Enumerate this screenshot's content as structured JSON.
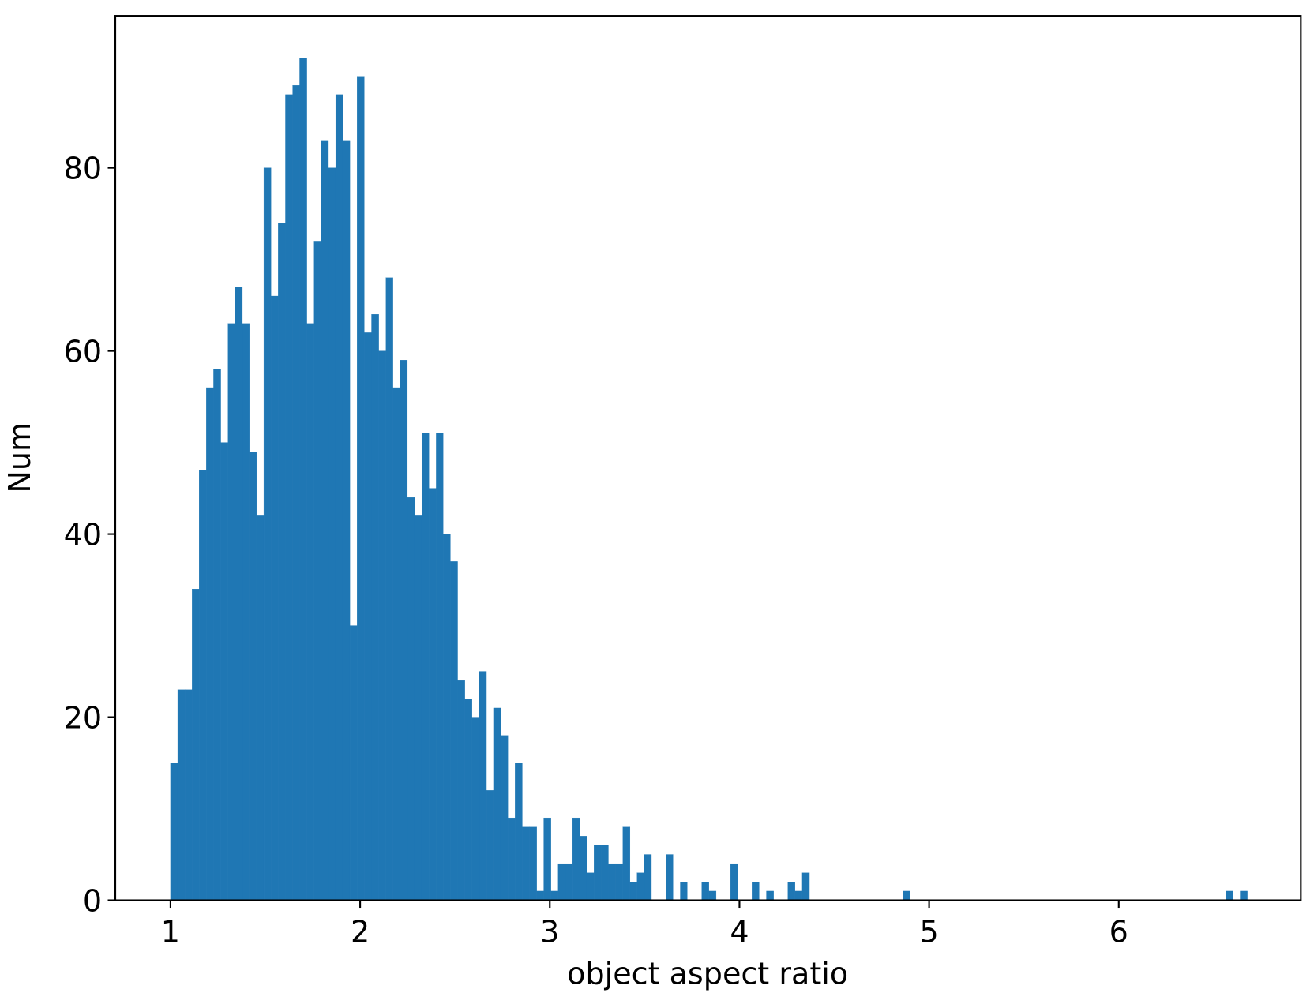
{
  "chart_data": {
    "type": "histogram",
    "xlabel": "object aspect ratio",
    "ylabel": "Num",
    "color": "#1f77b4",
    "bins": [
      1.0,
      1.038,
      1.076,
      1.114,
      1.151,
      1.189,
      1.227,
      1.265,
      1.303,
      1.341,
      1.379,
      1.416,
      1.454,
      1.492,
      1.53,
      1.568,
      1.606,
      1.644,
      1.681,
      1.719,
      1.757,
      1.795,
      1.833,
      1.871,
      1.908,
      1.946,
      1.984,
      2.022,
      2.06,
      2.098,
      2.136,
      2.173,
      2.211,
      2.249,
      2.287,
      2.325,
      2.363,
      2.401,
      2.438,
      2.476,
      2.514,
      2.552,
      2.59,
      2.628,
      2.666,
      2.703,
      2.741,
      2.779,
      2.817,
      2.855,
      2.893,
      2.931,
      2.968,
      3.006,
      3.044,
      3.082,
      3.12,
      3.158,
      3.195,
      3.233,
      3.271,
      3.309,
      3.347,
      3.385,
      3.423,
      3.46,
      3.498,
      3.536,
      3.574,
      3.612,
      3.65,
      3.688,
      3.725,
      3.763,
      3.801,
      3.839,
      3.877,
      3.915,
      3.953,
      3.99,
      4.028,
      4.066,
      4.104,
      4.142,
      4.18,
      4.218,
      4.255,
      4.293,
      4.331,
      4.369,
      4.407,
      4.445,
      4.482,
      4.52,
      4.558,
      4.596,
      4.634,
      4.672,
      4.71,
      4.747,
      4.785,
      4.823,
      4.861,
      4.899,
      4.937,
      4.975,
      5.012,
      5.05,
      5.088,
      5.126,
      5.164,
      5.202,
      5.24,
      5.277,
      5.315,
      5.353,
      5.391,
      5.429,
      5.467,
      5.505,
      5.542,
      5.58,
      5.618,
      5.656,
      5.694,
      5.732,
      5.769,
      5.807,
      5.845,
      5.883,
      5.921,
      5.959,
      5.997,
      6.034,
      6.072,
      6.11,
      6.148,
      6.186,
      6.224,
      6.262,
      6.299,
      6.337,
      6.375,
      6.413,
      6.451,
      6.489,
      6.527,
      6.564,
      6.602,
      6.64,
      6.678
    ],
    "values": [
      15,
      23,
      23,
      34,
      47,
      56,
      58,
      50,
      63,
      67,
      63,
      49,
      42,
      80,
      66,
      74,
      88,
      89,
      92,
      63,
      72,
      83,
      80,
      88,
      83,
      30,
      90,
      62,
      64,
      60,
      68,
      56,
      59,
      44,
      42,
      51,
      45,
      51,
      40,
      37,
      24,
      22,
      20,
      25,
      12,
      21,
      18,
      9,
      15,
      8,
      8,
      1,
      9,
      1,
      4,
      4,
      9,
      7,
      3,
      6,
      6,
      4,
      4,
      8,
      2,
      3,
      5,
      0,
      0,
      5,
      0,
      2,
      0,
      0,
      2,
      1,
      0,
      0,
      4,
      0,
      0,
      2,
      0,
      1,
      0,
      0,
      2,
      1,
      3,
      0,
      0,
      0,
      0,
      0,
      0,
      0,
      0,
      0,
      0,
      0,
      0,
      0,
      1,
      0,
      0,
      0,
      0,
      0,
      0,
      0,
      0,
      0,
      0,
      0,
      0,
      0,
      0,
      0,
      0,
      0,
      0,
      0,
      0,
      0,
      0,
      0,
      0,
      0,
      0,
      0,
      0,
      0,
      0,
      0,
      0,
      0,
      0,
      0,
      0,
      0,
      0,
      0,
      0,
      0,
      0,
      0,
      0,
      1,
      0,
      1
    ],
    "xlim": [
      0.709,
      6.96
    ],
    "ylim": [
      0,
      96.6
    ],
    "xticks": [
      1,
      2,
      3,
      4,
      5,
      6
    ],
    "yticks": [
      0,
      20,
      40,
      60,
      80
    ]
  }
}
